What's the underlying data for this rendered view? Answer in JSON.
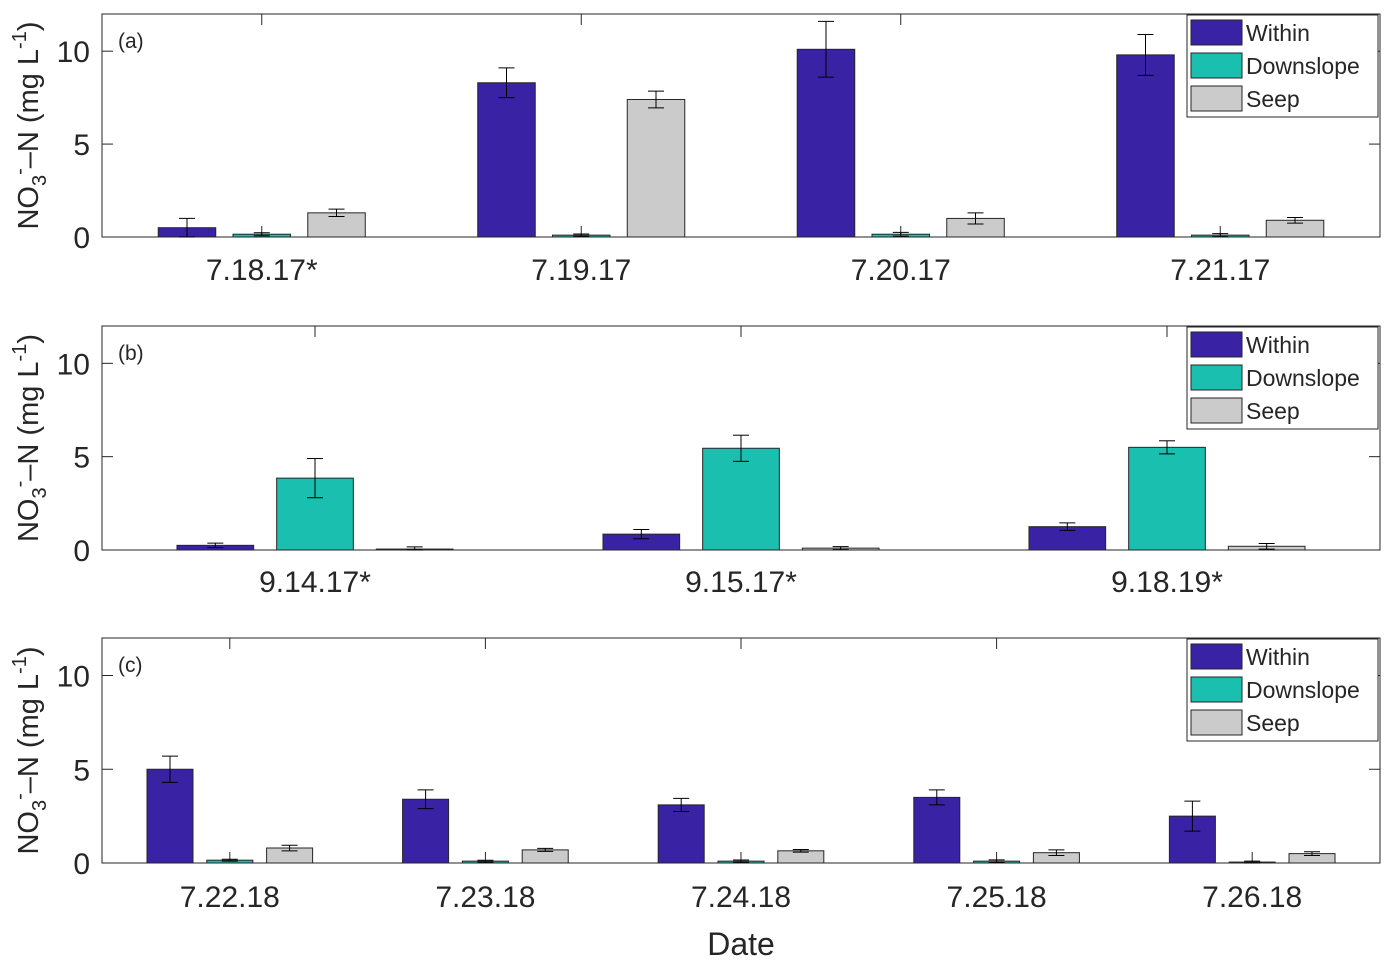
{
  "figure": {
    "xlabel": "Date",
    "ylabel_main": "NO",
    "ylabel_sub": "3",
    "ylabel_sup": "-",
    "ylabel_rest": "–N (mg L",
    "ylabel_unit_sup": "-1",
    "ylabel_close": ")"
  },
  "colors": {
    "Within": "#3a22a4",
    "Downslope": "#1bbfb0",
    "Seep": "#cbcbcb"
  },
  "chart_data": [
    {
      "type": "bar",
      "panel_label": "(a)",
      "categories": [
        "7.18.17*",
        "7.19.17",
        "7.20.17",
        "7.21.17"
      ],
      "series": [
        {
          "name": "Within",
          "values": [
            0.5,
            8.3,
            10.1,
            9.8
          ],
          "errors": [
            0.5,
            0.8,
            1.5,
            1.1
          ]
        },
        {
          "name": "Downslope",
          "values": [
            0.15,
            0.1,
            0.15,
            0.1
          ],
          "errors": [
            0.08,
            0.06,
            0.1,
            0.08
          ]
        },
        {
          "name": "Seep",
          "values": [
            1.3,
            7.4,
            1.0,
            0.9
          ],
          "errors": [
            0.2,
            0.45,
            0.3,
            0.15
          ]
        }
      ],
      "ylim": [
        0,
        12
      ],
      "yticks": [
        0,
        5,
        10
      ],
      "legend": "top-right"
    },
    {
      "type": "bar",
      "panel_label": "(b)",
      "categories": [
        "9.14.17*",
        "9.15.17*",
        "9.18.19*"
      ],
      "series": [
        {
          "name": "Within",
          "values": [
            0.25,
            0.85,
            1.25
          ],
          "errors": [
            0.12,
            0.25,
            0.2
          ]
        },
        {
          "name": "Downslope",
          "values": [
            3.85,
            5.45,
            5.5
          ],
          "errors": [
            1.05,
            0.7,
            0.35
          ]
        },
        {
          "name": "Seep",
          "values": [
            0.05,
            0.1,
            0.2
          ],
          "errors": [
            0.12,
            0.08,
            0.15
          ]
        }
      ],
      "ylim": [
        0,
        12
      ],
      "yticks": [
        0,
        5,
        10
      ],
      "legend": "top-right"
    },
    {
      "type": "bar",
      "panel_label": "(c)",
      "categories": [
        "7.22.18",
        "7.23.18",
        "7.24.18",
        "7.25.18",
        "7.26.18"
      ],
      "series": [
        {
          "name": "Within",
          "values": [
            5.0,
            3.4,
            3.1,
            3.5,
            2.5
          ],
          "errors": [
            0.7,
            0.5,
            0.35,
            0.4,
            0.8
          ]
        },
        {
          "name": "Downslope",
          "values": [
            0.15,
            0.1,
            0.1,
            0.1,
            0.05
          ],
          "errors": [
            0.05,
            0.05,
            0.06,
            0.07,
            0.05
          ]
        },
        {
          "name": "Seep",
          "values": [
            0.8,
            0.7,
            0.65,
            0.55,
            0.5
          ],
          "errors": [
            0.15,
            0.08,
            0.07,
            0.15,
            0.1
          ]
        }
      ],
      "ylim": [
        0,
        12
      ],
      "yticks": [
        0,
        5,
        10
      ],
      "legend": "top-right"
    }
  ]
}
